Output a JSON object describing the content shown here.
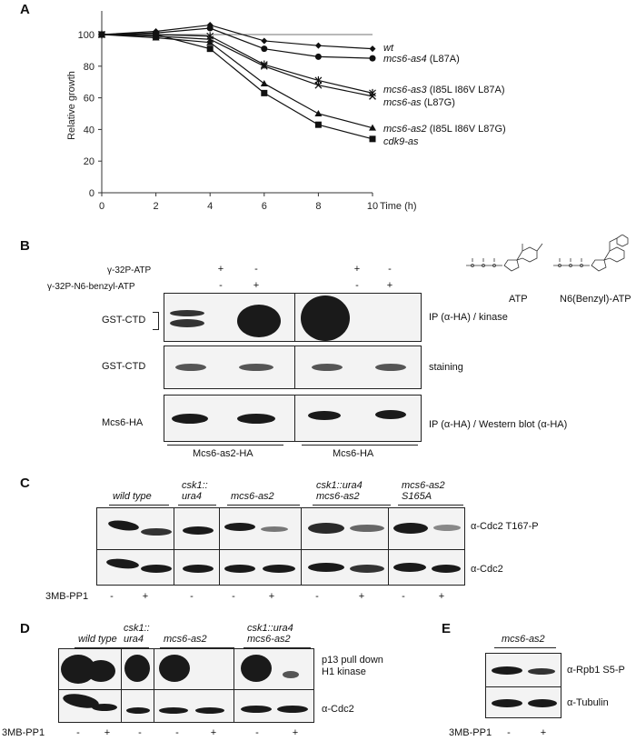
{
  "panelA": {
    "letter": "A",
    "ylabel": "Relative growth",
    "xlabel_suffix": "Time (h)",
    "xticks": [
      "0",
      "2",
      "4",
      "6",
      "8",
      "10"
    ],
    "yticks": [
      "0",
      "20",
      "40",
      "60",
      "80",
      "100"
    ],
    "legend": [
      {
        "name": "wt",
        "detail": ""
      },
      {
        "name": "mcs6-as4",
        "detail": " (L87A)"
      },
      {
        "name": "mcs6-as3",
        "detail": " (I85L I86V L87A)"
      },
      {
        "name": "mcs6-as",
        "detail": " (L87G)"
      },
      {
        "name": "mcs6-as2",
        "detail": " (I85L I86V L87G)"
      },
      {
        "name": "cdk9-as",
        "detail": ""
      }
    ]
  },
  "chart_data": {
    "type": "line",
    "x": [
      0,
      2,
      4,
      6,
      8,
      10
    ],
    "xlabel": "Time (h)",
    "ylabel": "Relative growth",
    "xlim": [
      0,
      10
    ],
    "ylim": [
      0,
      100
    ],
    "reference_line": 100,
    "series": [
      {
        "name": "wt",
        "marker": "diamond",
        "values": [
          100,
          102,
          106,
          96,
          93,
          91
        ]
      },
      {
        "name": "mcs6-as4 (L87A)",
        "marker": "circle",
        "values": [
          100,
          101,
          104,
          91,
          86,
          85
        ]
      },
      {
        "name": "mcs6-as3 (I85L I86V L87A)",
        "marker": "star",
        "values": [
          100,
          100,
          99,
          81,
          71,
          63
        ]
      },
      {
        "name": "mcs6-as (L87G)",
        "marker": "x",
        "values": [
          100,
          99,
          97,
          80,
          68,
          61
        ]
      },
      {
        "name": "mcs6-as2 (I85L I86V L87G)",
        "marker": "triangle",
        "values": [
          100,
          98,
          95,
          69,
          50,
          41
        ]
      },
      {
        "name": "cdk9-as",
        "marker": "square",
        "values": [
          100,
          100,
          91,
          63,
          43,
          34
        ]
      }
    ]
  },
  "panelB": {
    "letter": "B",
    "row1": "γ-32P-ATP",
    "row2": "γ-32P-N6-benzyl-ATP",
    "row1_marks": [
      "+",
      "-",
      "+",
      "-"
    ],
    "row2_marks": [
      "-",
      "+",
      "-",
      "+"
    ],
    "blot_labels": [
      "GST-CTD",
      "GST-CTD",
      "Mcs6-HA"
    ],
    "right_labels": [
      "IP (α-HA) / kinase",
      "staining",
      "IP (α-HA) / Western blot (α-HA)"
    ],
    "groups": [
      "Mcs6-as2-HA",
      "Mcs6-HA"
    ],
    "atp_label": "ATP",
    "benzyl_atp_label": "N6(Benzyl)-ATP"
  },
  "panelC": {
    "letter": "C",
    "groups": [
      "wild type",
      "csk1::\nura4",
      "mcs6-as2",
      "csk1::ura4\nmcs6-as2",
      "mcs6-as2\nS165A"
    ],
    "right_labels": [
      "α-Cdc2 T167-P",
      "α-Cdc2"
    ],
    "treatment": "3MB-PP1",
    "marks": [
      "-",
      "+",
      "-",
      "-",
      "+",
      "-",
      "+",
      "-",
      "+"
    ]
  },
  "panelD": {
    "letter": "D",
    "groups": [
      "wild type",
      "csk1::\nura4",
      "mcs6-as2",
      "csk1::ura4\nmcs6-as2"
    ],
    "right_labels": [
      "p13 pull down\nH1 kinase",
      "α-Cdc2"
    ],
    "treatment": "3MB-PP1",
    "marks": [
      "-",
      "+",
      "-",
      "-",
      "+",
      "-",
      "+"
    ]
  },
  "panelE": {
    "letter": "E",
    "group": "mcs6-as2",
    "right_labels": [
      "α-Rpb1 S5-P",
      "α-Tubulin"
    ],
    "treatment": "3MB-PP1",
    "marks": [
      "-",
      "+"
    ]
  }
}
